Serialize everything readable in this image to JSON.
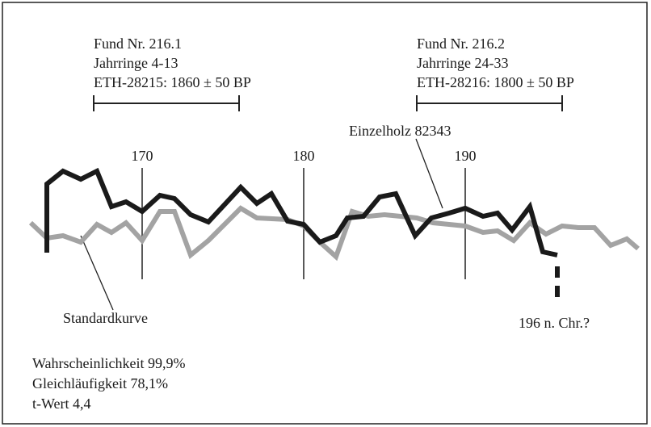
{
  "chart_data": {
    "type": "line",
    "xlim": [
      163,
      201
    ],
    "ylim": [
      20,
      200
    ],
    "xticks": [
      170,
      180,
      190
    ],
    "series": [
      {
        "name": "Einzelholz 82343",
        "color": "#1a1a1a",
        "x": [
          164.1,
          164.1,
          165.1,
          166.2,
          167.2,
          168.1,
          169,
          170,
          171.1,
          172,
          173,
          174.1,
          176.1,
          177.1,
          178,
          179,
          180,
          181,
          182,
          182.7,
          183.7,
          184.7,
          185.7,
          186.9,
          187.9,
          189,
          190,
          191.1,
          192,
          192.9,
          194,
          194.8,
          195.7
        ],
        "values": [
          87,
          172,
          188,
          178,
          188,
          144,
          150,
          138,
          158,
          154,
          134,
          125,
          168,
          148,
          160,
          126,
          122,
          100,
          108,
          130,
          132,
          156,
          160,
          108,
          130,
          136,
          142,
          132,
          136,
          115,
          144,
          88,
          84
        ]
      },
      {
        "name": "Standardkurve",
        "color": "#a3a3a3",
        "x": [
          163.1,
          164.1,
          165.1,
          166.2,
          167.2,
          168.1,
          169,
          170,
          171.1,
          172,
          173,
          174.1,
          176.1,
          177.1,
          179,
          180,
          181,
          182,
          183,
          184,
          185,
          186,
          187,
          188,
          189,
          190,
          191.1,
          192,
          193,
          194,
          195,
          196,
          197,
          198,
          199,
          200,
          200.7
        ],
        "values": [
          124,
          105,
          108,
          100,
          122,
          112,
          124,
          102,
          138,
          138,
          84,
          102,
          142,
          130,
          128,
          120,
          100,
          82,
          138,
          132,
          134,
          132,
          130,
          124,
          122,
          120,
          112,
          114,
          102,
          124,
          110,
          120,
          118,
          118,
          96,
          104,
          92
        ]
      }
    ],
    "brackets": [
      {
        "lines": [
          "Fund Nr. 216.1",
          "Jahrringe 4-13",
          "ETH-28215: 1860 ± 50 BP"
        ],
        "range": [
          167,
          176
        ]
      },
      {
        "lines": [
          "Fund Nr. 216.2",
          "Jahrringe 24-33",
          "ETH-28216: 1800 ± 50 BP"
        ],
        "range": [
          187,
          196
        ]
      }
    ],
    "annotation": "196 n. Chr.?",
    "stats": [
      "Wahrscheinlichkeit 99,9%",
      "Gleichläufigkeit 78,1%",
      "t-Wert 4,4"
    ]
  }
}
